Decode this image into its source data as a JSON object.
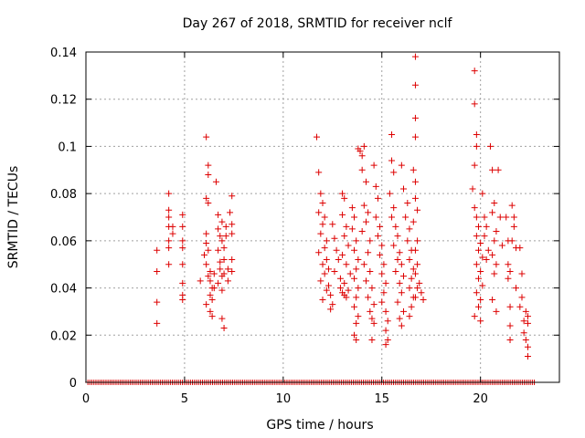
{
  "chart_data": {
    "type": "scatter",
    "title": "Day 267 of 2018, SRMTID for receiver nclf",
    "xlabel": "GPS time / hours",
    "ylabel": "SRMTID / TECUs",
    "xlim": [
      0,
      24
    ],
    "ylim": [
      0,
      0.14
    ],
    "x_ticks": [
      0,
      5,
      10,
      15,
      20
    ],
    "y_ticks": [
      0,
      0.02,
      0.04,
      0.06,
      0.08,
      0.1,
      0.12,
      0.14
    ],
    "x_tick_labels": [
      "0",
      "5",
      "10",
      "15",
      "20"
    ],
    "y_tick_labels": [
      "0",
      "0.02",
      "0.04",
      "0.06",
      "0.08",
      "0.1",
      "0.12",
      "0.14"
    ],
    "grid": true,
    "marker": "+",
    "color": "#dd0000",
    "zero_baseline": {
      "x_start": 0.1,
      "x_end": 22.8,
      "y": 0
    },
    "series": [
      {
        "name": "SRMTID",
        "points": [
          [
            3.6,
            0.056
          ],
          [
            3.6,
            0.047
          ],
          [
            3.6,
            0.034
          ],
          [
            3.6,
            0.025
          ],
          [
            4.2,
            0.08
          ],
          [
            4.2,
            0.073
          ],
          [
            4.2,
            0.07
          ],
          [
            4.2,
            0.066
          ],
          [
            4.2,
            0.06
          ],
          [
            4.2,
            0.057
          ],
          [
            4.2,
            0.05
          ],
          [
            4.4,
            0.066
          ],
          [
            4.4,
            0.063
          ],
          [
            4.9,
            0.071
          ],
          [
            4.9,
            0.066
          ],
          [
            4.9,
            0.06
          ],
          [
            4.9,
            0.057
          ],
          [
            4.9,
            0.05
          ],
          [
            4.9,
            0.042
          ],
          [
            4.9,
            0.037
          ],
          [
            4.9,
            0.035
          ],
          [
            5.8,
            0.043
          ],
          [
            6.0,
            0.054
          ],
          [
            6.1,
            0.104
          ],
          [
            6.2,
            0.092
          ],
          [
            6.2,
            0.088
          ],
          [
            6.1,
            0.078
          ],
          [
            6.2,
            0.076
          ],
          [
            6.1,
            0.063
          ],
          [
            6.1,
            0.059
          ],
          [
            6.2,
            0.056
          ],
          [
            6.1,
            0.05
          ],
          [
            6.3,
            0.047
          ],
          [
            6.2,
            0.045
          ],
          [
            6.3,
            0.043
          ],
          [
            6.4,
            0.04
          ],
          [
            6.3,
            0.037
          ],
          [
            6.4,
            0.035
          ],
          [
            6.3,
            0.03
          ],
          [
            6.4,
            0.028
          ],
          [
            6.1,
            0.033
          ],
          [
            6.5,
            0.046
          ],
          [
            6.5,
            0.04
          ],
          [
            6.6,
            0.085
          ],
          [
            6.7,
            0.071
          ],
          [
            6.7,
            0.065
          ],
          [
            6.8,
            0.062
          ],
          [
            6.7,
            0.056
          ],
          [
            6.8,
            0.051
          ],
          [
            6.8,
            0.048
          ],
          [
            6.9,
            0.045
          ],
          [
            6.7,
            0.042
          ],
          [
            6.9,
            0.039
          ],
          [
            6.9,
            0.068
          ],
          [
            6.9,
            0.06
          ],
          [
            7.0,
            0.057
          ],
          [
            7.0,
            0.052
          ],
          [
            7.0,
            0.046
          ],
          [
            6.9,
            0.027
          ],
          [
            7.0,
            0.023
          ],
          [
            7.1,
            0.066
          ],
          [
            7.1,
            0.062
          ],
          [
            7.2,
            0.048
          ],
          [
            7.2,
            0.043
          ],
          [
            7.4,
            0.079
          ],
          [
            7.3,
            0.072
          ],
          [
            7.4,
            0.067
          ],
          [
            7.4,
            0.063
          ],
          [
            7.4,
            0.052
          ],
          [
            7.4,
            0.047
          ],
          [
            11.7,
            0.104
          ],
          [
            11.8,
            0.089
          ],
          [
            11.9,
            0.08
          ],
          [
            12.0,
            0.076
          ],
          [
            11.8,
            0.072
          ],
          [
            12.1,
            0.07
          ],
          [
            12.0,
            0.067
          ],
          [
            11.9,
            0.063
          ],
          [
            12.2,
            0.06
          ],
          [
            12.1,
            0.057
          ],
          [
            11.8,
            0.055
          ],
          [
            12.2,
            0.052
          ],
          [
            12.0,
            0.05
          ],
          [
            12.3,
            0.048
          ],
          [
            12.1,
            0.046
          ],
          [
            11.9,
            0.043
          ],
          [
            12.3,
            0.041
          ],
          [
            12.2,
            0.039
          ],
          [
            12.4,
            0.037
          ],
          [
            12.0,
            0.035
          ],
          [
            12.5,
            0.033
          ],
          [
            12.4,
            0.031
          ],
          [
            12.5,
            0.067
          ],
          [
            12.6,
            0.061
          ],
          [
            12.7,
            0.056
          ],
          [
            12.8,
            0.052
          ],
          [
            12.6,
            0.047
          ],
          [
            12.9,
            0.044
          ],
          [
            13.0,
            0.08
          ],
          [
            13.1,
            0.078
          ],
          [
            13.0,
            0.071
          ],
          [
            13.2,
            0.066
          ],
          [
            13.1,
            0.062
          ],
          [
            13.3,
            0.058
          ],
          [
            13.0,
            0.054
          ],
          [
            13.2,
            0.05
          ],
          [
            13.4,
            0.046
          ],
          [
            13.1,
            0.042
          ],
          [
            13.3,
            0.039
          ],
          [
            13.2,
            0.036
          ],
          [
            13.0,
            0.038
          ],
          [
            12.9,
            0.04
          ],
          [
            13.1,
            0.037
          ],
          [
            13.5,
            0.074
          ],
          [
            13.6,
            0.07
          ],
          [
            13.5,
            0.065
          ],
          [
            13.7,
            0.06
          ],
          [
            13.6,
            0.056
          ],
          [
            13.8,
            0.052
          ],
          [
            13.7,
            0.048
          ],
          [
            13.6,
            0.044
          ],
          [
            13.8,
            0.04
          ],
          [
            13.7,
            0.036
          ],
          [
            13.6,
            0.032
          ],
          [
            13.8,
            0.028
          ],
          [
            13.7,
            0.025
          ],
          [
            13.6,
            0.02
          ],
          [
            13.7,
            0.018
          ],
          [
            13.8,
            0.099
          ],
          [
            13.9,
            0.098
          ],
          [
            14.0,
            0.096
          ],
          [
            14.1,
            0.1
          ],
          [
            14.0,
            0.09
          ],
          [
            14.2,
            0.085
          ],
          [
            14.1,
            0.075
          ],
          [
            14.3,
            0.072
          ],
          [
            14.2,
            0.068
          ],
          [
            14.0,
            0.064
          ],
          [
            14.4,
            0.06
          ],
          [
            14.3,
            0.055
          ],
          [
            14.1,
            0.05
          ],
          [
            14.4,
            0.047
          ],
          [
            14.2,
            0.043
          ],
          [
            14.5,
            0.04
          ],
          [
            14.3,
            0.036
          ],
          [
            14.6,
            0.033
          ],
          [
            14.4,
            0.03
          ],
          [
            14.5,
            0.027
          ],
          [
            14.6,
            0.025
          ],
          [
            14.5,
            0.018
          ],
          [
            14.6,
            0.092
          ],
          [
            14.7,
            0.083
          ],
          [
            14.8,
            0.078
          ],
          [
            14.7,
            0.07
          ],
          [
            14.9,
            0.066
          ],
          [
            14.8,
            0.062
          ],
          [
            15.0,
            0.058
          ],
          [
            14.9,
            0.054
          ],
          [
            15.1,
            0.05
          ],
          [
            15.0,
            0.046
          ],
          [
            15.2,
            0.042
          ],
          [
            15.1,
            0.038
          ],
          [
            15.0,
            0.034
          ],
          [
            15.2,
            0.03
          ],
          [
            15.3,
            0.026
          ],
          [
            15.2,
            0.022
          ],
          [
            15.3,
            0.018
          ],
          [
            15.2,
            0.016
          ],
          [
            15.5,
            0.105
          ],
          [
            15.5,
            0.094
          ],
          [
            15.6,
            0.089
          ],
          [
            15.4,
            0.08
          ],
          [
            15.6,
            0.074
          ],
          [
            15.5,
            0.07
          ],
          [
            15.7,
            0.066
          ],
          [
            15.8,
            0.062
          ],
          [
            15.6,
            0.058
          ],
          [
            15.9,
            0.055
          ],
          [
            15.8,
            0.052
          ],
          [
            16.0,
            0.05
          ],
          [
            15.7,
            0.047
          ],
          [
            16.1,
            0.045
          ],
          [
            15.9,
            0.042
          ],
          [
            16.0,
            0.038
          ],
          [
            15.8,
            0.034
          ],
          [
            16.1,
            0.03
          ],
          [
            15.9,
            0.027
          ],
          [
            16.0,
            0.024
          ],
          [
            16.0,
            0.092
          ],
          [
            16.1,
            0.082
          ],
          [
            16.3,
            0.076
          ],
          [
            16.2,
            0.07
          ],
          [
            16.4,
            0.065
          ],
          [
            16.3,
            0.06
          ],
          [
            16.5,
            0.056
          ],
          [
            16.4,
            0.052
          ],
          [
            16.6,
            0.048
          ],
          [
            16.5,
            0.044
          ],
          [
            16.4,
            0.04
          ],
          [
            16.6,
            0.036
          ],
          [
            16.5,
            0.032
          ],
          [
            16.4,
            0.028
          ],
          [
            16.7,
            0.138
          ],
          [
            16.7,
            0.126
          ],
          [
            16.7,
            0.112
          ],
          [
            16.7,
            0.104
          ],
          [
            16.6,
            0.09
          ],
          [
            16.7,
            0.085
          ],
          [
            16.7,
            0.078
          ],
          [
            16.8,
            0.073
          ],
          [
            16.6,
            0.068
          ],
          [
            16.8,
            0.06
          ],
          [
            16.7,
            0.056
          ],
          [
            16.8,
            0.05
          ],
          [
            16.7,
            0.046
          ],
          [
            16.8,
            0.04
          ],
          [
            16.7,
            0.036
          ],
          [
            16.9,
            0.042
          ],
          [
            17.0,
            0.038
          ],
          [
            17.1,
            0.035
          ],
          [
            19.7,
            0.132
          ],
          [
            19.7,
            0.118
          ],
          [
            19.8,
            0.105
          ],
          [
            19.8,
            0.1
          ],
          [
            19.7,
            0.092
          ],
          [
            19.6,
            0.082
          ],
          [
            19.7,
            0.074
          ],
          [
            19.8,
            0.07
          ],
          [
            19.9,
            0.066
          ],
          [
            19.8,
            0.062
          ],
          [
            20.0,
            0.059
          ],
          [
            19.9,
            0.056
          ],
          [
            20.1,
            0.053
          ],
          [
            19.8,
            0.05
          ],
          [
            20.0,
            0.047
          ],
          [
            19.9,
            0.044
          ],
          [
            20.1,
            0.041
          ],
          [
            19.8,
            0.038
          ],
          [
            20.0,
            0.035
          ],
          [
            19.9,
            0.032
          ],
          [
            19.7,
            0.028
          ],
          [
            20.0,
            0.026
          ],
          [
            20.1,
            0.08
          ],
          [
            20.2,
            0.07
          ],
          [
            20.3,
            0.066
          ],
          [
            20.2,
            0.062
          ],
          [
            20.4,
            0.056
          ],
          [
            20.3,
            0.052
          ],
          [
            20.5,
            0.1
          ],
          [
            20.6,
            0.09
          ],
          [
            20.7,
            0.076
          ],
          [
            20.6,
            0.072
          ],
          [
            20.8,
            0.064
          ],
          [
            20.7,
            0.06
          ],
          [
            20.6,
            0.054
          ],
          [
            20.8,
            0.05
          ],
          [
            20.7,
            0.046
          ],
          [
            20.6,
            0.035
          ],
          [
            20.8,
            0.03
          ],
          [
            20.9,
            0.09
          ],
          [
            21.0,
            0.07
          ],
          [
            21.1,
            0.058
          ],
          [
            21.3,
            0.07
          ],
          [
            21.4,
            0.06
          ],
          [
            21.4,
            0.05
          ],
          [
            21.5,
            0.047
          ],
          [
            21.4,
            0.044
          ],
          [
            21.5,
            0.032
          ],
          [
            21.6,
            0.075
          ],
          [
            21.7,
            0.07
          ],
          [
            21.7,
            0.066
          ],
          [
            21.6,
            0.06
          ],
          [
            21.8,
            0.057
          ],
          [
            21.5,
            0.024
          ],
          [
            21.5,
            0.018
          ],
          [
            21.8,
            0.04
          ],
          [
            22.0,
            0.057
          ],
          [
            22.1,
            0.046
          ],
          [
            22.1,
            0.036
          ],
          [
            22.0,
            0.032
          ],
          [
            22.2,
            0.026
          ],
          [
            22.3,
            0.03
          ],
          [
            22.4,
            0.028
          ],
          [
            22.4,
            0.025
          ],
          [
            22.3,
            0.018
          ],
          [
            22.4,
            0.015
          ],
          [
            22.4,
            0.011
          ],
          [
            22.2,
            0.021
          ]
        ]
      }
    ]
  }
}
